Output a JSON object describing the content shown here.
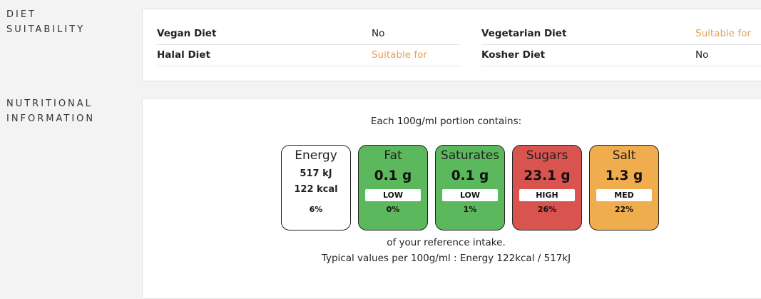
{
  "diet": {
    "label_line1": "DIET",
    "label_line2": "SUITABILITY",
    "rows": [
      {
        "name": "Vegan Diet",
        "value": "No"
      },
      {
        "name": "Vegetarian Diet",
        "value": "Suitable for"
      },
      {
        "name": "Halal Diet",
        "value": "Suitable for"
      },
      {
        "name": "Kosher Diet",
        "value": "No"
      }
    ]
  },
  "nutrition": {
    "label_line1": "NUTRITIONAL",
    "label_line2": "INFORMATION",
    "portion_title": "Each 100g/ml portion contains:",
    "energy": {
      "title": "Energy",
      "kj": "517 kJ",
      "kcal": "122 kcal",
      "pct": "6%"
    },
    "items": [
      {
        "title": "Fat",
        "amount": "0.1 g",
        "level": "LOW",
        "pct": "0%",
        "color": "#5cb85c"
      },
      {
        "title": "Saturates",
        "amount": "0.1 g",
        "level": "LOW",
        "pct": "1%",
        "color": "#5cb85c"
      },
      {
        "title": "Sugars",
        "amount": "23.1 g",
        "level": "HIGH",
        "pct": "26%",
        "color": "#d9534f"
      },
      {
        "title": "Salt",
        "amount": "1.3 g",
        "level": "MED",
        "pct": "22%",
        "color": "#f0ad4e"
      }
    ],
    "reference_text": "of your reference intake.",
    "typical_text": "Typical values per 100g/ml : Energy 122kcal / 517kJ"
  }
}
